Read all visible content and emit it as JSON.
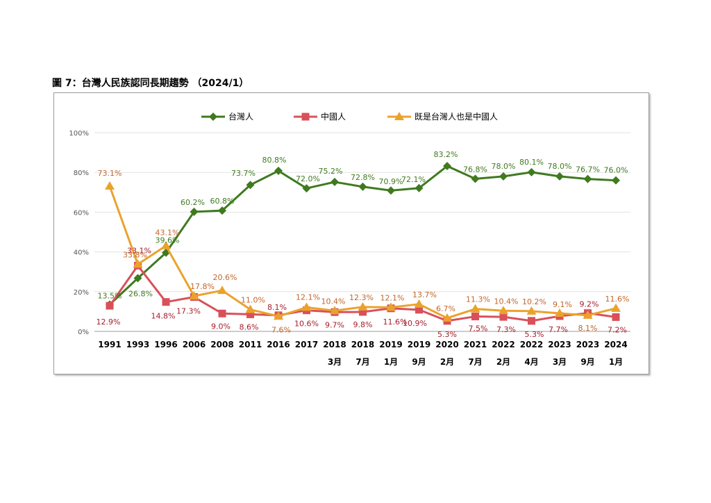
{
  "figure": {
    "title": "圖 7：台灣人民族認同長期趨勢 （2024/1）"
  },
  "chart_data": {
    "type": "line",
    "categories": [
      [
        "1991",
        ""
      ],
      [
        "1993",
        ""
      ],
      [
        "1996",
        ""
      ],
      [
        "2006",
        ""
      ],
      [
        "2008",
        ""
      ],
      [
        "2011",
        ""
      ],
      [
        "2016",
        ""
      ],
      [
        "2017",
        ""
      ],
      [
        "2018",
        "3月"
      ],
      [
        "2018",
        "7月"
      ],
      [
        "2019",
        "1月"
      ],
      [
        "2019",
        "9月"
      ],
      [
        "2020",
        "2月"
      ],
      [
        "2021",
        "7月"
      ],
      [
        "2022",
        "2月"
      ],
      [
        "2022",
        "4月"
      ],
      [
        "2023",
        "3月"
      ],
      [
        "2023",
        "9月"
      ],
      [
        "2024",
        "1月"
      ]
    ],
    "y_ticks": [
      "0%",
      "20%",
      "40%",
      "60%",
      "80%",
      "100%"
    ],
    "ylim": [
      0,
      100
    ],
    "grid": true,
    "legend_position": "top",
    "series": [
      {
        "name": "台灣人",
        "color": "#3f7a1e",
        "label_color": "#3f7a1e",
        "marker": "diamond",
        "values": [
          13.5,
          26.8,
          39.6,
          60.2,
          60.8,
          73.7,
          80.8,
          72.0,
          75.2,
          72.8,
          70.9,
          72.1,
          83.2,
          76.8,
          78.0,
          80.1,
          78.0,
          76.7,
          76.0
        ],
        "labels": [
          "13.5%",
          "26.8%",
          "39.6%",
          "60.2%",
          "60.8%",
          "73.7%",
          "80.8%",
          "72.0%",
          "75.2%",
          "72.8%",
          "70.9%",
          "72.1%",
          "83.2%",
          "76.8%",
          "78.0%",
          "80.1%",
          "78.0%",
          "76.7%",
          "76.0%"
        ]
      },
      {
        "name": "中國人",
        "color": "#d9505a",
        "label_color": "#a51d2a",
        "marker": "square",
        "values": [
          12.9,
          33.1,
          14.8,
          17.3,
          9.0,
          8.6,
          8.1,
          10.6,
          9.7,
          9.8,
          11.6,
          10.9,
          5.3,
          7.5,
          7.3,
          5.3,
          7.7,
          9.2,
          7.2
        ],
        "labels": [
          "12.9%",
          "33.1%",
          "14.8%",
          "17.3%",
          "9.0%",
          "8.6%",
          "8.1%",
          "10.6%",
          "9.7%",
          "9.8%",
          "11.6%",
          "10.9%",
          "5.3%",
          "7.5%",
          "7.3%",
          "5.3%",
          "7.7%",
          "9.2%",
          "7.2%"
        ]
      },
      {
        "name": "既是台灣人也是中國人",
        "color": "#eba22c",
        "label_color": "#c2662a",
        "marker": "triangle",
        "values": [
          73.1,
          33.8,
          43.1,
          17.8,
          20.6,
          11.0,
          7.6,
          12.1,
          10.4,
          12.3,
          12.1,
          13.7,
          6.7,
          11.3,
          10.4,
          10.2,
          9.1,
          8.1,
          11.6
        ],
        "labels": [
          "73.1%",
          "33.8%",
          "43.1%",
          "17.8%",
          "20.6%",
          "11.0%",
          "7.6%",
          "12.1%",
          "10.4%",
          "12.3%",
          "12.1%",
          "13.7%",
          "6.7%",
          "11.3%",
          "10.4%",
          "10.2%",
          "9.1%",
          "8.1%",
          "11.6%"
        ]
      }
    ]
  }
}
